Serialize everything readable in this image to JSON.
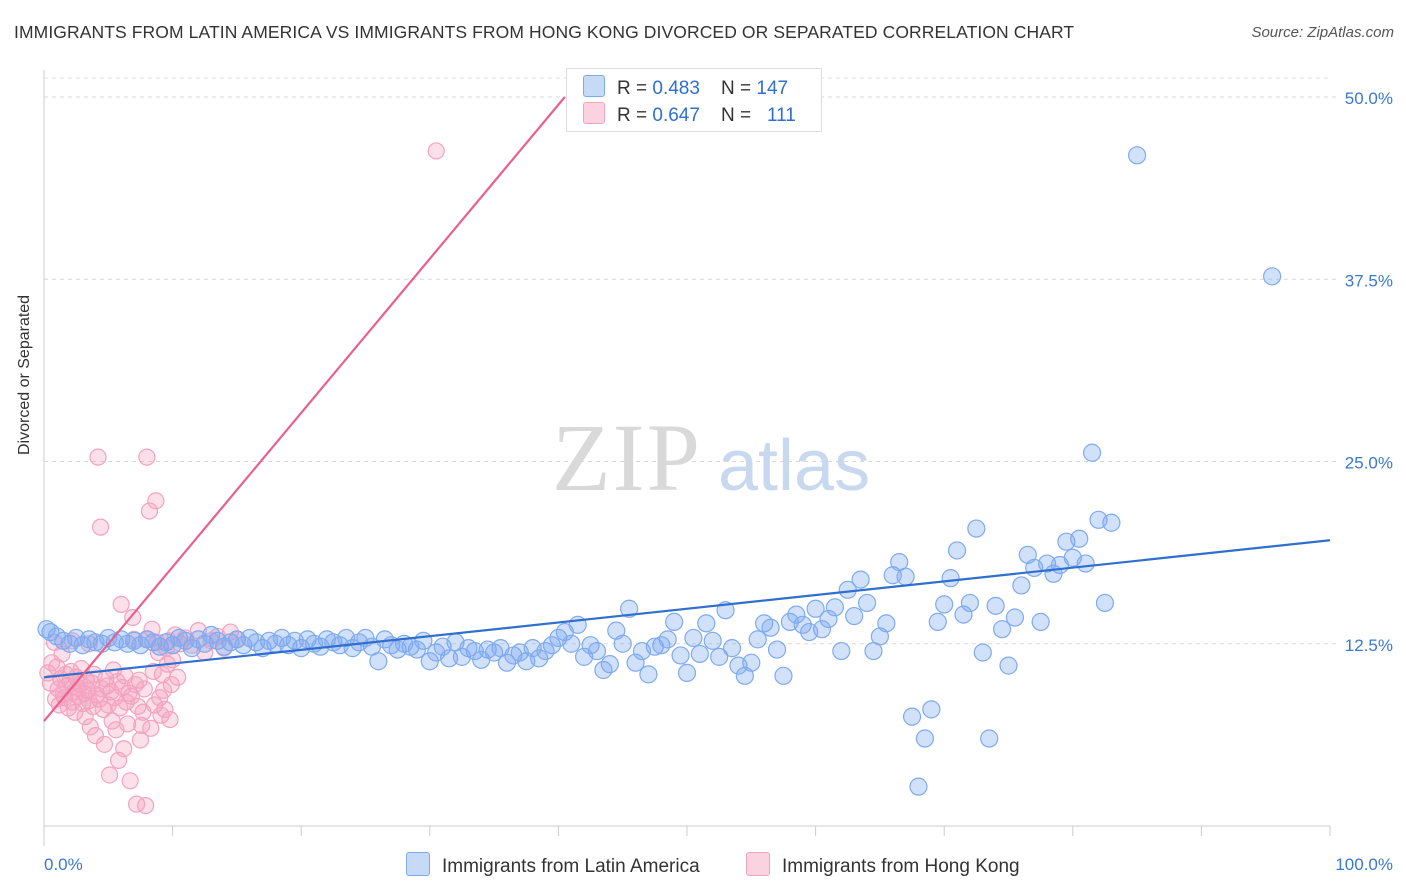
{
  "title": "IMMIGRANTS FROM LATIN AMERICA VS IMMIGRANTS FROM HONG KONG DIVORCED OR SEPARATED CORRELATION CHART",
  "source": "Source: ZipAtlas.com",
  "watermark": {
    "zip": "ZIP",
    "atlas": "atlas"
  },
  "legend": {
    "rows": [
      {
        "r_label": "R = ",
        "r_value": "0.483",
        "n_label": "N = ",
        "n_value": "147",
        "color": "#7eaaf0"
      },
      {
        "r_label": "R = ",
        "r_value": "0.647",
        "n_label": "N = ",
        "n_value": "111",
        "color": "#f4a3bf"
      }
    ]
  },
  "chart_data": {
    "type": "scatter",
    "title": "IMMIGRANTS FROM LATIN AMERICA VS IMMIGRANTS FROM HONG KONG DIVORCED OR SEPARATED CORRELATION CHART",
    "xlabel": "",
    "ylabel": "Divorced or Separated",
    "xlim": [
      0,
      100
    ],
    "ylim": [
      0,
      52
    ],
    "x_tick_labels": [
      "0.0%",
      "100.0%"
    ],
    "y_ticks": [
      12.5,
      25.0,
      37.5,
      50.0
    ],
    "y_tick_labels": [
      "12.5%",
      "25.0%",
      "37.5%",
      "50.0%"
    ],
    "grid": "horizontal dashed",
    "legend_position": "bottom",
    "series": [
      {
        "name": "Immigrants from Latin America",
        "color": "#7eaaf0",
        "line_color": "#2f6fce",
        "trend": {
          "x": [
            0,
            100
          ],
          "y": [
            10.2,
            19.6
          ]
        },
        "points": [
          [
            0.2,
            13.5
          ],
          [
            0.5,
            13.3
          ],
          [
            1,
            13
          ],
          [
            1.5,
            12.7
          ],
          [
            2,
            12.5
          ],
          [
            2.5,
            12.9
          ],
          [
            3,
            12.4
          ],
          [
            3.5,
            12.8
          ],
          [
            4,
            12.6
          ],
          [
            4.5,
            12.5
          ],
          [
            5,
            12.9
          ],
          [
            5.5,
            12.6
          ],
          [
            6,
            12.8
          ],
          [
            6.5,
            12.5
          ],
          [
            7,
            12.7
          ],
          [
            7.5,
            12.4
          ],
          [
            8,
            12.8
          ],
          [
            8.5,
            12.6
          ],
          [
            9,
            12.3
          ],
          [
            9.5,
            12.6
          ],
          [
            10,
            12.4
          ],
          [
            10.5,
            12.9
          ],
          [
            11,
            12.7
          ],
          [
            11.5,
            12.2
          ],
          [
            12,
            12.8
          ],
          [
            12.5,
            12.5
          ],
          [
            13,
            13.1
          ],
          [
            13.5,
            12.7
          ],
          [
            14,
            12.3
          ],
          [
            14.5,
            12.6
          ],
          [
            15,
            12.8
          ],
          [
            15.5,
            12.4
          ],
          [
            16,
            12.9
          ],
          [
            16.5,
            12.6
          ],
          [
            17,
            12.2
          ],
          [
            17.5,
            12.7
          ],
          [
            18,
            12.5
          ],
          [
            18.5,
            12.9
          ],
          [
            19,
            12.4
          ],
          [
            19.5,
            12.7
          ],
          [
            20,
            12.2
          ],
          [
            20.5,
            12.8
          ],
          [
            21,
            12.5
          ],
          [
            21.5,
            12.3
          ],
          [
            22,
            12.8
          ],
          [
            22.5,
            12.6
          ],
          [
            23,
            12.4
          ],
          [
            23.5,
            12.9
          ],
          [
            24,
            12.2
          ],
          [
            24.5,
            12.6
          ],
          [
            25,
            12.9
          ],
          [
            25.5,
            12.3
          ],
          [
            26,
            11.3
          ],
          [
            26.5,
            12.8
          ],
          [
            27,
            12.4
          ],
          [
            27.5,
            12.1
          ],
          [
            28,
            12.5
          ],
          [
            28.5,
            12.3
          ],
          [
            29,
            12.1
          ],
          [
            29.5,
            12.7
          ],
          [
            30,
            11.3
          ],
          [
            30.5,
            11.9
          ],
          [
            31,
            12.3
          ],
          [
            31.5,
            11.5
          ],
          [
            32,
            12.6
          ],
          [
            32.5,
            11.6
          ],
          [
            33,
            12.2
          ],
          [
            33.5,
            12.0
          ],
          [
            34,
            11.4
          ],
          [
            34.5,
            12.1
          ],
          [
            35,
            11.9
          ],
          [
            35.5,
            12.2
          ],
          [
            36,
            11.2
          ],
          [
            36.5,
            11.7
          ],
          [
            37,
            11.9
          ],
          [
            37.5,
            11.3
          ],
          [
            38,
            12.2
          ],
          [
            38.5,
            11.5
          ],
          [
            39,
            12.0
          ],
          [
            39.5,
            12.4
          ],
          [
            40,
            12.9
          ],
          [
            40.5,
            13.3
          ],
          [
            41,
            12.5
          ],
          [
            41.5,
            13.8
          ],
          [
            42,
            11.6
          ],
          [
            42.5,
            12.4
          ],
          [
            43,
            12.0
          ],
          [
            43.5,
            10.7
          ],
          [
            44,
            11.1
          ],
          [
            44.5,
            13.4
          ],
          [
            45,
            12.5
          ],
          [
            45.5,
            14.9
          ],
          [
            46,
            11.2
          ],
          [
            46.5,
            12.0
          ],
          [
            47,
            10.4
          ],
          [
            47.5,
            12.3
          ],
          [
            48,
            12.4
          ],
          [
            48.5,
            12.8
          ],
          [
            49,
            14.0
          ],
          [
            49.5,
            11.7
          ],
          [
            50,
            10.5
          ],
          [
            50.5,
            12.9
          ],
          [
            51,
            11.8
          ],
          [
            51.5,
            13.9
          ],
          [
            52,
            12.7
          ],
          [
            52.5,
            11.6
          ],
          [
            53,
            14.8
          ],
          [
            53.5,
            12.2
          ],
          [
            54,
            11.0
          ],
          [
            54.5,
            10.3
          ],
          [
            55,
            11.2
          ],
          [
            55.5,
            12.8
          ],
          [
            56,
            13.9
          ],
          [
            56.5,
            13.6
          ],
          [
            57,
            12.1
          ],
          [
            57.5,
            10.3
          ],
          [
            58,
            14.0
          ],
          [
            58.5,
            14.5
          ],
          [
            59,
            13.8
          ],
          [
            59.5,
            13.3
          ],
          [
            60,
            14.9
          ],
          [
            60.5,
            13.5
          ],
          [
            61,
            14.2
          ],
          [
            61.5,
            15.0
          ],
          [
            62,
            12.0
          ],
          [
            62.5,
            16.2
          ],
          [
            63,
            14.4
          ],
          [
            63.5,
            16.9
          ],
          [
            64,
            15.3
          ],
          [
            64.5,
            12.0
          ],
          [
            65,
            13.0
          ],
          [
            65.5,
            13.9
          ],
          [
            66,
            17.2
          ],
          [
            66.5,
            18.1
          ],
          [
            67,
            17.1
          ],
          [
            67.5,
            7.5
          ],
          [
            68,
            2.7
          ],
          [
            68.5,
            6.0
          ],
          [
            69,
            8.0
          ],
          [
            69.5,
            14.0
          ],
          [
            70,
            15.2
          ],
          [
            70.5,
            17.0
          ],
          [
            71,
            18.9
          ],
          [
            71.5,
            14.5
          ],
          [
            72,
            15.3
          ],
          [
            72.5,
            20.4
          ],
          [
            73,
            11.9
          ],
          [
            73.5,
            6.0
          ],
          [
            74,
            15.1
          ],
          [
            74.5,
            13.5
          ],
          [
            75,
            11.0
          ],
          [
            75.5,
            14.3
          ],
          [
            76,
            16.5
          ],
          [
            76.5,
            18.6
          ],
          [
            77,
            17.7
          ],
          [
            77.5,
            14.0
          ],
          [
            78,
            18.0
          ],
          [
            78.5,
            17.3
          ],
          [
            79,
            17.9
          ],
          [
            79.5,
            19.5
          ],
          [
            80,
            18.4
          ],
          [
            80.5,
            19.7
          ],
          [
            81,
            18.0
          ],
          [
            81.5,
            25.6
          ],
          [
            82,
            21.0
          ],
          [
            82.5,
            15.3
          ],
          [
            83,
            20.8
          ],
          [
            85,
            46.0
          ],
          [
            95.5,
            37.7
          ]
        ]
      },
      {
        "name": "Immigrants from Hong Kong",
        "color": "#f4a3bf",
        "line_color": "#e8618e",
        "trend": {
          "x": [
            0,
            40.5
          ],
          "y": [
            7.2,
            50.0
          ]
        },
        "points": [
          [
            0.3,
            10.5
          ],
          [
            0.5,
            9.8
          ],
          [
            0.6,
            11.2
          ],
          [
            0.8,
            12.6
          ],
          [
            0.9,
            8.7
          ],
          [
            1,
            10.9
          ],
          [
            1.1,
            9.4
          ],
          [
            1.2,
            8.3
          ],
          [
            1.3,
            10.1
          ],
          [
            1.4,
            11.8
          ],
          [
            1.5,
            9.0
          ],
          [
            1.6,
            8.8
          ],
          [
            1.7,
            10.4
          ],
          [
            1.8,
            9.6
          ],
          [
            1.9,
            8.1
          ],
          [
            2,
            9.9
          ],
          [
            2.1,
            10.6
          ],
          [
            2.2,
            8.5
          ],
          [
            2.3,
            9.2
          ],
          [
            2.4,
            7.8
          ],
          [
            2.5,
            10.2
          ],
          [
            2.6,
            9.5
          ],
          [
            2.7,
            8.9
          ],
          [
            2.8,
            9.7
          ],
          [
            2.9,
            10.8
          ],
          [
            3,
            8.4
          ],
          [
            3.1,
            9.1
          ],
          [
            3.2,
            7.5
          ],
          [
            3.3,
            10.0
          ],
          [
            3.4,
            9.3
          ],
          [
            3.5,
            8.6
          ],
          [
            3.6,
            6.8
          ],
          [
            3.7,
            9.8
          ],
          [
            3.8,
            8.2
          ],
          [
            3.9,
            10.4
          ],
          [
            4,
            6.2
          ],
          [
            4.1,
            9.0
          ],
          [
            4.2,
            25.3
          ],
          [
            4.3,
            8.7
          ],
          [
            4.4,
            20.5
          ],
          [
            4.5,
            9.4
          ],
          [
            4.6,
            8.0
          ],
          [
            4.7,
            5.6
          ],
          [
            4.8,
            10.1
          ],
          [
            4.9,
            9.6
          ],
          [
            5,
            8.3
          ],
          [
            5.1,
            3.5
          ],
          [
            5.2,
            9.2
          ],
          [
            5.3,
            7.2
          ],
          [
            5.4,
            10.7
          ],
          [
            5.5,
            8.8
          ],
          [
            5.6,
            6.6
          ],
          [
            5.7,
            9.9
          ],
          [
            5.8,
            4.5
          ],
          [
            5.9,
            8.1
          ],
          [
            6,
            15.2
          ],
          [
            6.1,
            9.5
          ],
          [
            6.2,
            5.3
          ],
          [
            6.3,
            10.3
          ],
          [
            6.4,
            8.5
          ],
          [
            6.5,
            7.0
          ],
          [
            6.6,
            9.1
          ],
          [
            6.7,
            3.1
          ],
          [
            6.8,
            8.9
          ],
          [
            6.9,
            14.3
          ],
          [
            7,
            12.8
          ],
          [
            7.1,
            9.7
          ],
          [
            7.2,
            1.5
          ],
          [
            7.3,
            8.2
          ],
          [
            7.4,
            10.0
          ],
          [
            7.5,
            5.9
          ],
          [
            7.6,
            6.9
          ],
          [
            7.7,
            7.8
          ],
          [
            7.8,
            9.4
          ],
          [
            7.9,
            1.4
          ],
          [
            8,
            25.3
          ],
          [
            8.1,
            12.8
          ],
          [
            8.2,
            21.6
          ],
          [
            8.3,
            6.7
          ],
          [
            8.4,
            13.5
          ],
          [
            8.5,
            10.6
          ],
          [
            8.6,
            8.3
          ],
          [
            8.7,
            22.3
          ],
          [
            8.8,
            12.6
          ],
          [
            8.9,
            11.9
          ],
          [
            9,
            8.8
          ],
          [
            9.1,
            7.6
          ],
          [
            9.2,
            10.4
          ],
          [
            9.3,
            9.3
          ],
          [
            9.4,
            8.0
          ],
          [
            9.5,
            12.2
          ],
          [
            9.6,
            11.1
          ],
          [
            9.7,
            12.7
          ],
          [
            9.8,
            7.3
          ],
          [
            9.9,
            9.7
          ],
          [
            10,
            11.4
          ],
          [
            10.2,
            13.1
          ],
          [
            10.4,
            10.2
          ],
          [
            10.6,
            12.5
          ],
          [
            11,
            12.9
          ],
          [
            11.5,
            12.4
          ],
          [
            12,
            13.4
          ],
          [
            12.5,
            11.9
          ],
          [
            13,
            12.7
          ],
          [
            13.5,
            13.0
          ],
          [
            14,
            12.2
          ],
          [
            14.5,
            13.3
          ],
          [
            15,
            12.8
          ],
          [
            30.5,
            46.3
          ],
          [
            3.5,
            12.5
          ],
          [
            2.2,
            12.7
          ]
        ]
      }
    ]
  },
  "bottom_legend": [
    {
      "label": "Immigrants from Latin America",
      "color": "#7eaaf0"
    },
    {
      "label": "Immigrants from Hong Kong",
      "color": "#f4a3bf"
    }
  ]
}
